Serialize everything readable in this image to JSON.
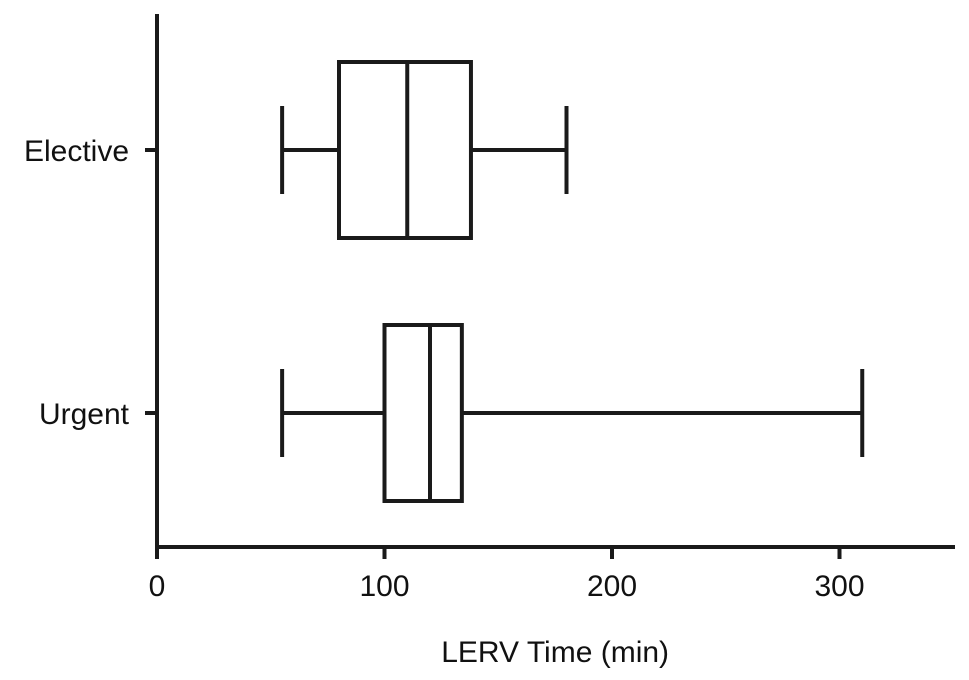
{
  "chart_data": {
    "type": "boxplot",
    "orientation": "horizontal",
    "xlabel": "LERV Time (min)",
    "ylabel": "",
    "xlim": [
      0,
      350
    ],
    "x_ticks": [
      0,
      100,
      200,
      300
    ],
    "x_tick_labels": [
      "0",
      "100",
      "200",
      "300"
    ],
    "grid": false,
    "categories": [
      "Elective",
      "Urgent"
    ],
    "series": [
      {
        "category": "Elective",
        "min": 55,
        "q1": 80,
        "median": 110,
        "q3": 138,
        "max": 180
      },
      {
        "category": "Urgent",
        "min": 55,
        "q1": 100,
        "median": 120,
        "q3": 134,
        "max": 310
      }
    ]
  }
}
